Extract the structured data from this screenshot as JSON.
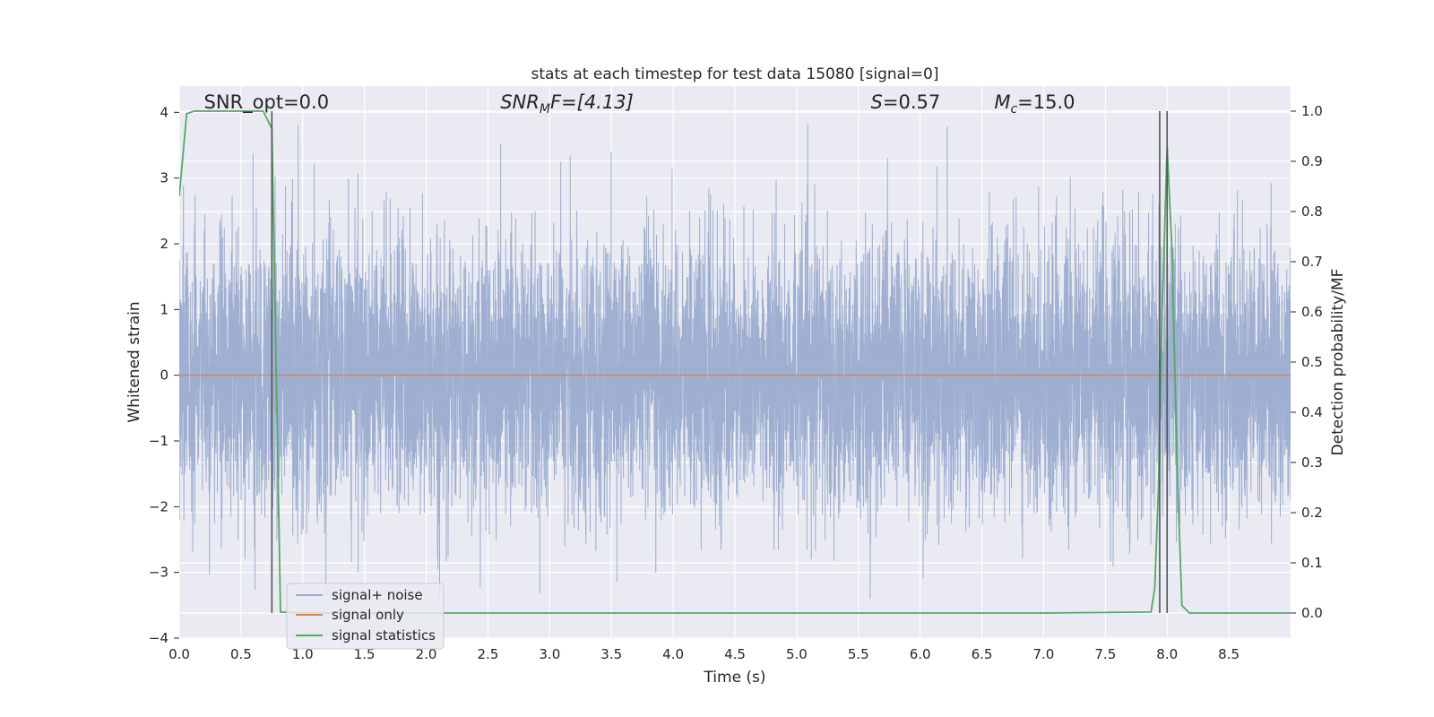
{
  "chart_data": {
    "type": "line",
    "title": "stats at each timestep for test data 15080 [signal=0]",
    "xlabel": "Time (s)",
    "ylabel": "Whitened strain",
    "y2label": "Detection probability/MF",
    "xlim": [
      0.0,
      9.0
    ],
    "ylim": [
      -4.0,
      4.4
    ],
    "y2lim": [
      -0.05,
      1.05
    ],
    "xticks": [
      0.0,
      0.5,
      1.0,
      1.5,
      2.0,
      2.5,
      3.0,
      3.5,
      4.0,
      4.5,
      5.0,
      5.5,
      6.0,
      6.5,
      7.0,
      7.5,
      8.0,
      8.5
    ],
    "xtick_labels": [
      "0.0",
      "0.5",
      "1.0",
      "1.5",
      "2.0",
      "2.5",
      "3.0",
      "3.5",
      "4.0",
      "4.5",
      "5.0",
      "5.5",
      "6.0",
      "6.5",
      "7.0",
      "7.5",
      "8.0",
      "8.5"
    ],
    "yticks": [
      -4,
      -3,
      -2,
      -1,
      0,
      1,
      2,
      3,
      4
    ],
    "ytick_labels": [
      "−4",
      "−3",
      "−2",
      "−1",
      "0",
      "1",
      "2",
      "3",
      "4"
    ],
    "y2ticks": [
      0.0,
      0.1,
      0.2,
      0.3,
      0.4,
      0.5,
      0.6,
      0.7,
      0.8,
      0.9,
      1.0
    ],
    "y2tick_labels": [
      "0.0",
      "0.1",
      "0.2",
      "0.3",
      "0.4",
      "0.5",
      "0.6",
      "0.7",
      "0.8",
      "0.9",
      "1.0"
    ],
    "grid": true,
    "legend_position": "bottom-left",
    "annotations": [
      {
        "text": "SNR_opt=0.0",
        "x": 0.2
      },
      {
        "text": "SNR",
        "sub": "M",
        "after": "F=[4.13]",
        "x": 2.6,
        "italic": true
      },
      {
        "text": "S",
        "after": "=0.57",
        "x": 5.6,
        "italic": true
      },
      {
        "text": "M",
        "sub": "c",
        "after": "=15.0",
        "x": 6.6,
        "italic": true
      }
    ],
    "vlines": [
      0.75,
      7.94,
      8.0
    ],
    "series": [
      {
        "name": "signal+ noise",
        "color": "#9aaccf",
        "kind": "noise",
        "samples": 8192,
        "std": 1.0,
        "min": -3.65,
        "max": 4.0
      },
      {
        "name": "signal only",
        "color": "#dd8452",
        "x": [
          0.0,
          9.0
        ],
        "y": [
          0.0,
          0.0
        ]
      },
      {
        "name": "signal statistics",
        "color": "#55a868",
        "axis": "right",
        "x": [
          0.0,
          0.06,
          0.12,
          0.25,
          0.5,
          0.68,
          0.7,
          0.75,
          0.82,
          1.0,
          2.0,
          4.0,
          6.0,
          7.0,
          7.87,
          7.9,
          7.93,
          7.96,
          8.0,
          8.04,
          8.08,
          8.12,
          8.18,
          8.3,
          9.0
        ],
        "y": [
          0.83,
          0.995,
          1.0,
          1.0,
          1.0,
          1.0,
          0.99,
          0.965,
          0.002,
          0.0,
          0.0,
          0.0,
          0.0,
          0.0,
          0.002,
          0.05,
          0.25,
          0.6,
          0.93,
          0.72,
          0.3,
          0.015,
          0.0,
          0.0,
          0.0
        ]
      }
    ]
  }
}
